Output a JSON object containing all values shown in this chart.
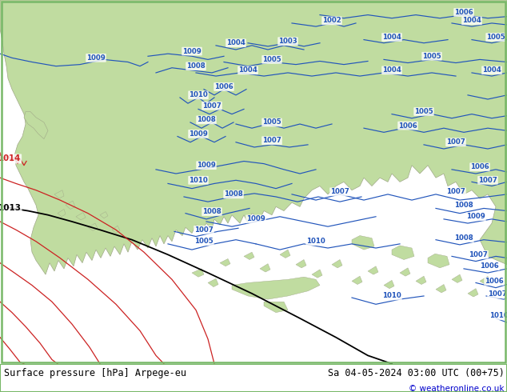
{
  "title_left": "Surface pressure [hPa] Arpege-eu",
  "title_right": "Sa 04-05-2024 03:00 UTC (00+75)",
  "copyright": "© weatheronline.co.uk",
  "sea_color": "#d8d8d8",
  "land_color": "#c0dca0",
  "land_edge": "#a0a888",
  "border_green": "#78b868",
  "blue": "#2255bb",
  "black": "#000000",
  "red": "#cc2222",
  "white": "#ffffff",
  "copyright_color": "#0000cc",
  "footer_bg": "#ffffff",
  "fig_bg": "#ffffff"
}
